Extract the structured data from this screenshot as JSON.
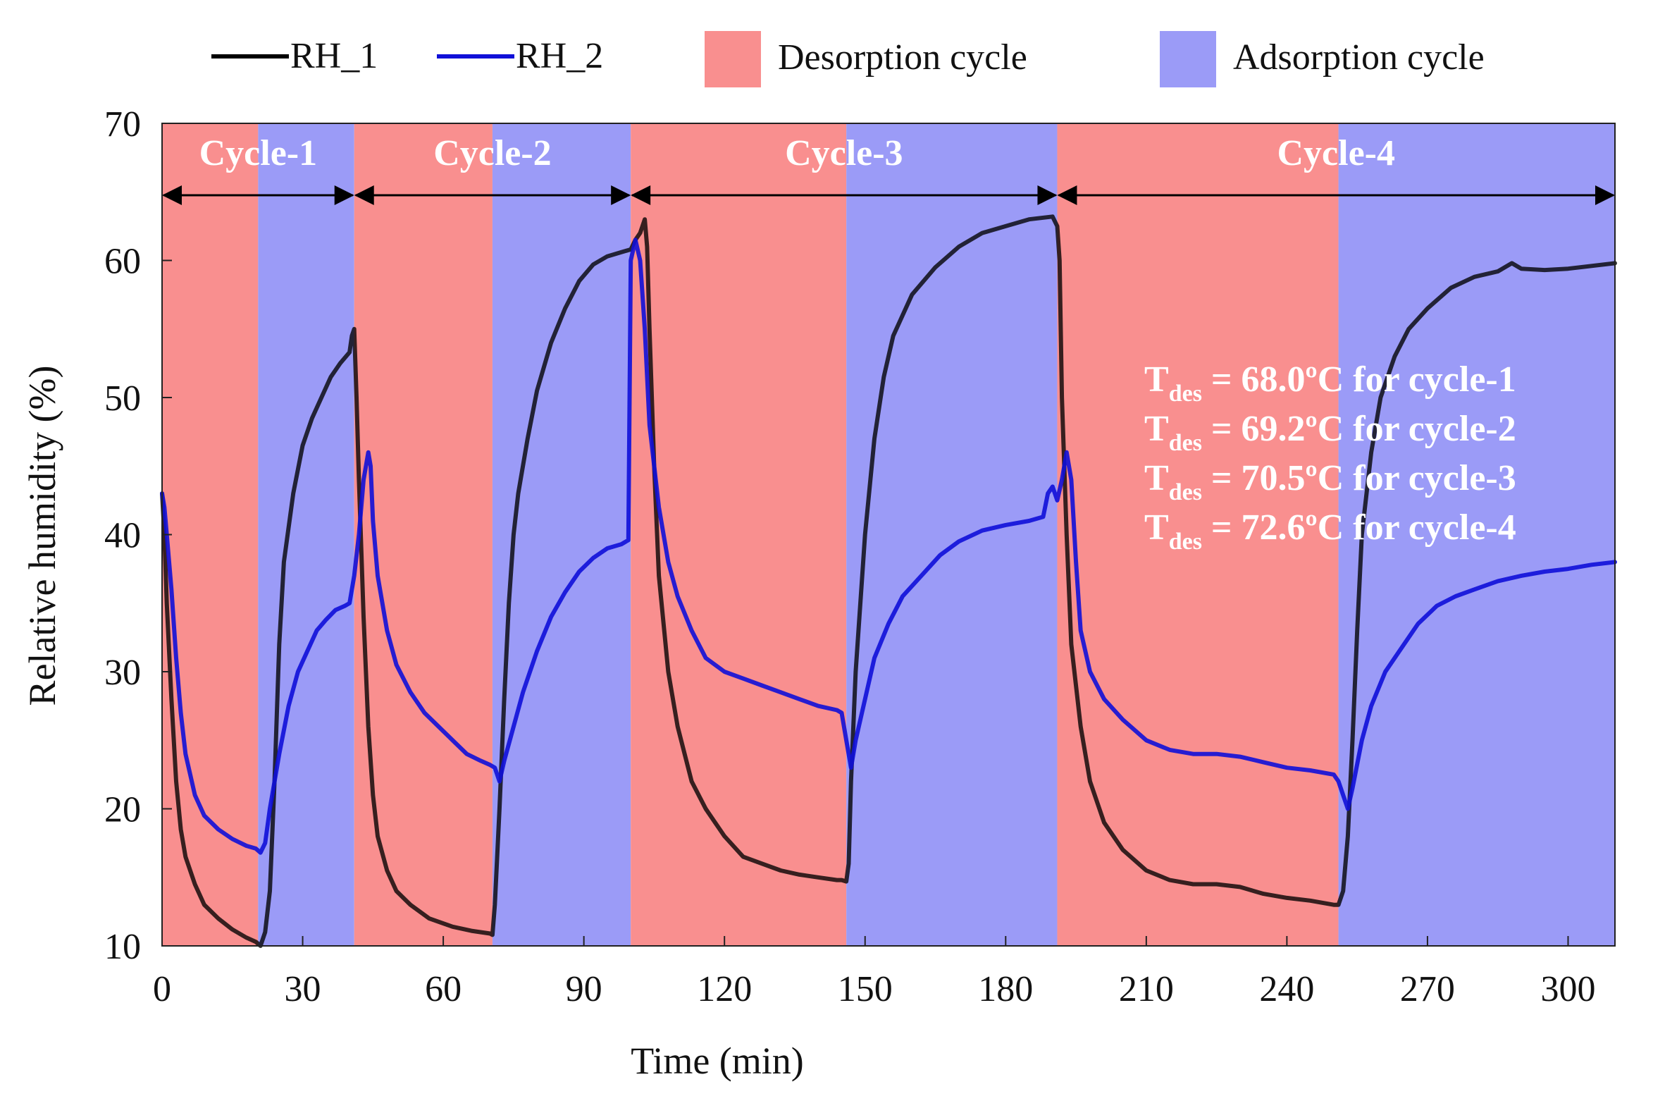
{
  "chart_data": {
    "type": "line",
    "xlabel": "Time (min)",
    "ylabel": "Relative humidity (%)",
    "xlim": [
      0,
      310
    ],
    "ylim": [
      10,
      70
    ],
    "xticks": [
      0,
      30,
      60,
      90,
      120,
      150,
      180,
      210,
      240,
      270,
      300
    ],
    "yticks": [
      10,
      20,
      30,
      40,
      50,
      60,
      70
    ],
    "legend": {
      "placement": "top",
      "entries": [
        {
          "label": "RH_1",
          "kind": "line",
          "color": "#000000"
        },
        {
          "label": "RH_2",
          "kind": "line",
          "color": "#1010d8"
        },
        {
          "label": "Desorption cycle",
          "kind": "patch",
          "color": "#f98f8f"
        },
        {
          "label": "Adsorption cycle",
          "kind": "patch",
          "color": "#9b9bf7"
        }
      ]
    },
    "bands": [
      {
        "kind": "desorption",
        "start": 0,
        "end": 20.5
      },
      {
        "kind": "adsorption",
        "start": 20.5,
        "end": 41
      },
      {
        "kind": "desorption",
        "start": 41,
        "end": 70.5
      },
      {
        "kind": "adsorption",
        "start": 70.5,
        "end": 100
      },
      {
        "kind": "desorption",
        "start": 100,
        "end": 146
      },
      {
        "kind": "adsorption",
        "start": 146,
        "end": 191
      },
      {
        "kind": "desorption",
        "start": 191,
        "end": 251
      },
      {
        "kind": "adsorption",
        "start": 251,
        "end": 310
      }
    ],
    "cycles": [
      {
        "label": "Cycle-1",
        "start": 0,
        "end": 41
      },
      {
        "label": "Cycle-2",
        "start": 41,
        "end": 100
      },
      {
        "label": "Cycle-3",
        "start": 100,
        "end": 191
      },
      {
        "label": "Cycle-4",
        "start": 191,
        "end": 310
      }
    ],
    "annotations": [
      {
        "sym": "T",
        "sub": "des",
        "text": " = 68.0ºC for cycle-1"
      },
      {
        "sym": "T",
        "sub": "des",
        "text": " = 69.2ºC for cycle-2"
      },
      {
        "sym": "T",
        "sub": "des",
        "text": " = 70.5ºC for cycle-3"
      },
      {
        "sym": "T",
        "sub": "des",
        "text": " = 72.6ºC for cycle-4"
      }
    ],
    "series": [
      {
        "name": "RH_1",
        "color": "#000000",
        "points": [
          [
            0,
            43
          ],
          [
            0.5,
            40
          ],
          [
            1,
            35
          ],
          [
            2,
            28
          ],
          [
            3,
            22
          ],
          [
            4,
            18.5
          ],
          [
            5,
            16.5
          ],
          [
            7,
            14.5
          ],
          [
            9,
            13
          ],
          [
            12,
            12
          ],
          [
            15,
            11.2
          ],
          [
            18,
            10.6
          ],
          [
            20,
            10.3
          ],
          [
            21,
            10
          ],
          [
            22,
            11
          ],
          [
            23,
            14
          ],
          [
            24,
            22
          ],
          [
            25,
            32
          ],
          [
            26,
            38
          ],
          [
            28,
            43
          ],
          [
            30,
            46.5
          ],
          [
            32,
            48.5
          ],
          [
            34,
            50
          ],
          [
            36,
            51.5
          ],
          [
            38,
            52.5
          ],
          [
            40,
            53.3
          ],
          [
            40.5,
            54.5
          ],
          [
            41,
            55
          ],
          [
            41.5,
            50
          ],
          [
            42,
            44
          ],
          [
            43,
            34
          ],
          [
            44,
            26
          ],
          [
            45,
            21
          ],
          [
            46,
            18
          ],
          [
            48,
            15.5
          ],
          [
            50,
            14
          ],
          [
            53,
            13
          ],
          [
            57,
            12
          ],
          [
            62,
            11.4
          ],
          [
            66,
            11.1
          ],
          [
            70,
            10.9
          ],
          [
            70.5,
            10.8
          ],
          [
            71,
            13
          ],
          [
            72,
            20
          ],
          [
            73,
            28
          ],
          [
            74,
            35
          ],
          [
            75,
            40
          ],
          [
            76,
            43
          ],
          [
            78,
            47
          ],
          [
            80,
            50.5
          ],
          [
            83,
            54
          ],
          [
            86,
            56.5
          ],
          [
            89,
            58.5
          ],
          [
            92,
            59.7
          ],
          [
            95,
            60.3
          ],
          [
            98,
            60.6
          ],
          [
            100,
            60.8
          ],
          [
            101,
            61.5
          ],
          [
            102,
            62
          ],
          [
            103,
            63
          ],
          [
            103.5,
            61
          ],
          [
            104,
            55
          ],
          [
            105,
            45
          ],
          [
            106,
            37
          ],
          [
            108,
            30
          ],
          [
            110,
            26
          ],
          [
            113,
            22
          ],
          [
            116,
            20
          ],
          [
            120,
            18
          ],
          [
            124,
            16.5
          ],
          [
            128,
            16
          ],
          [
            132,
            15.5
          ],
          [
            136,
            15.2
          ],
          [
            140,
            15
          ],
          [
            144,
            14.8
          ],
          [
            145,
            14.8
          ],
          [
            146,
            14.7
          ],
          [
            146.5,
            16
          ],
          [
            147,
            22
          ],
          [
            148,
            30
          ],
          [
            150,
            40
          ],
          [
            152,
            47
          ],
          [
            154,
            51.5
          ],
          [
            156,
            54.5
          ],
          [
            160,
            57.5
          ],
          [
            165,
            59.5
          ],
          [
            170,
            61
          ],
          [
            175,
            62
          ],
          [
            180,
            62.5
          ],
          [
            185,
            63
          ],
          [
            190,
            63.2
          ],
          [
            191,
            62.5
          ],
          [
            191.5,
            60
          ],
          [
            192,
            50
          ],
          [
            193,
            40
          ],
          [
            194,
            32
          ],
          [
            196,
            26
          ],
          [
            198,
            22
          ],
          [
            201,
            19
          ],
          [
            205,
            17
          ],
          [
            210,
            15.5
          ],
          [
            215,
            14.8
          ],
          [
            220,
            14.5
          ],
          [
            225,
            14.5
          ],
          [
            230,
            14.3
          ],
          [
            235,
            13.8
          ],
          [
            240,
            13.5
          ],
          [
            245,
            13.3
          ],
          [
            250,
            13
          ],
          [
            251,
            13
          ],
          [
            252,
            14
          ],
          [
            253,
            18
          ],
          [
            254,
            25
          ],
          [
            255,
            33
          ],
          [
            256,
            40
          ],
          [
            258,
            46
          ],
          [
            260,
            50
          ],
          [
            263,
            53
          ],
          [
            266,
            55
          ],
          [
            270,
            56.5
          ],
          [
            275,
            58
          ],
          [
            280,
            58.8
          ],
          [
            285,
            59.2
          ],
          [
            288,
            59.8
          ],
          [
            290,
            59.4
          ],
          [
            295,
            59.3
          ],
          [
            300,
            59.4
          ],
          [
            305,
            59.6
          ],
          [
            310,
            59.8
          ]
        ]
      },
      {
        "name": "RH_2",
        "color": "#1010d8",
        "points": [
          [
            0,
            43
          ],
          [
            0.5,
            42
          ],
          [
            1,
            40
          ],
          [
            2,
            36
          ],
          [
            3,
            31
          ],
          [
            4,
            27
          ],
          [
            5,
            24
          ],
          [
            7,
            21
          ],
          [
            9,
            19.5
          ],
          [
            12,
            18.5
          ],
          [
            15,
            17.8
          ],
          [
            18,
            17.3
          ],
          [
            20,
            17.1
          ],
          [
            21,
            16.8
          ],
          [
            22,
            17.5
          ],
          [
            23,
            20
          ],
          [
            25,
            24
          ],
          [
            27,
            27.5
          ],
          [
            29,
            30
          ],
          [
            31,
            31.5
          ],
          [
            33,
            33
          ],
          [
            35,
            33.8
          ],
          [
            37,
            34.5
          ],
          [
            39,
            34.8
          ],
          [
            40,
            35
          ],
          [
            41,
            37
          ],
          [
            42,
            40
          ],
          [
            43,
            44
          ],
          [
            44,
            46
          ],
          [
            44.5,
            45
          ],
          [
            45,
            41
          ],
          [
            46,
            37
          ],
          [
            48,
            33
          ],
          [
            50,
            30.5
          ],
          [
            53,
            28.5
          ],
          [
            56,
            27
          ],
          [
            59,
            26
          ],
          [
            62,
            25
          ],
          [
            65,
            24
          ],
          [
            68,
            23.5
          ],
          [
            70,
            23.2
          ],
          [
            71,
            23
          ],
          [
            72,
            22
          ],
          [
            73,
            23.5
          ],
          [
            75,
            26
          ],
          [
            77,
            28.5
          ],
          [
            80,
            31.5
          ],
          [
            83,
            34
          ],
          [
            86,
            35.8
          ],
          [
            89,
            37.3
          ],
          [
            92,
            38.3
          ],
          [
            95,
            39
          ],
          [
            98,
            39.3
          ],
          [
            99.5,
            39.6
          ],
          [
            100,
            60
          ],
          [
            101,
            61.5
          ],
          [
            102,
            60
          ],
          [
            103,
            55
          ],
          [
            104,
            48
          ],
          [
            106,
            42
          ],
          [
            108,
            38
          ],
          [
            110,
            35.5
          ],
          [
            113,
            33
          ],
          [
            116,
            31
          ],
          [
            120,
            30
          ],
          [
            124,
            29.5
          ],
          [
            128,
            29
          ],
          [
            132,
            28.5
          ],
          [
            136,
            28
          ],
          [
            140,
            27.5
          ],
          [
            144,
            27.2
          ],
          [
            145,
            27
          ],
          [
            146,
            25
          ],
          [
            147,
            23
          ],
          [
            148,
            25
          ],
          [
            150,
            28
          ],
          [
            152,
            31
          ],
          [
            155,
            33.5
          ],
          [
            158,
            35.5
          ],
          [
            162,
            37
          ],
          [
            166,
            38.5
          ],
          [
            170,
            39.5
          ],
          [
            175,
            40.3
          ],
          [
            180,
            40.7
          ],
          [
            185,
            41
          ],
          [
            188,
            41.3
          ],
          [
            189,
            43
          ],
          [
            190,
            43.5
          ],
          [
            191,
            42.5
          ],
          [
            192,
            44
          ],
          [
            193,
            46
          ],
          [
            194,
            44
          ],
          [
            195,
            38
          ],
          [
            196,
            33
          ],
          [
            198,
            30
          ],
          [
            201,
            28
          ],
          [
            205,
            26.5
          ],
          [
            210,
            25
          ],
          [
            215,
            24.3
          ],
          [
            220,
            24
          ],
          [
            225,
            24
          ],
          [
            230,
            23.8
          ],
          [
            235,
            23.4
          ],
          [
            240,
            23
          ],
          [
            245,
            22.8
          ],
          [
            250,
            22.5
          ],
          [
            251,
            22
          ],
          [
            252,
            21
          ],
          [
            253,
            20
          ],
          [
            254,
            21.5
          ],
          [
            256,
            25
          ],
          [
            258,
            27.5
          ],
          [
            261,
            30
          ],
          [
            264,
            31.5
          ],
          [
            268,
            33.5
          ],
          [
            272,
            34.8
          ],
          [
            276,
            35.5
          ],
          [
            280,
            36
          ],
          [
            285,
            36.6
          ],
          [
            290,
            37
          ],
          [
            295,
            37.3
          ],
          [
            300,
            37.5
          ],
          [
            305,
            37.8
          ],
          [
            310,
            38
          ]
        ]
      }
    ]
  }
}
